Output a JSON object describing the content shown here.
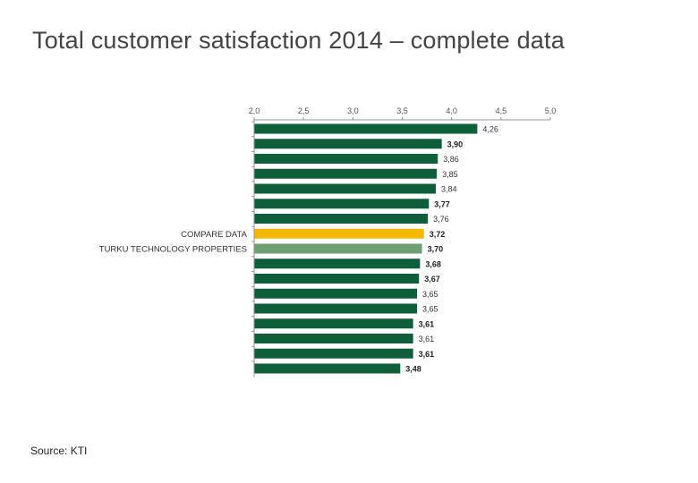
{
  "slide": {
    "title": "Total customer satisfaction 2014 – complete data",
    "source": "Source: KTI"
  },
  "colors": {
    "default_bar": "#0e5e3a",
    "compare_bar": "#f5b800",
    "highlight_bar": "#6e9e72",
    "axis": "#777777"
  },
  "chart_data": {
    "type": "bar",
    "orientation": "horizontal",
    "xlim": [
      2.0,
      5.0
    ],
    "ticks": [
      "2,0",
      "2,5",
      "3,0",
      "3,5",
      "4,0",
      "4,5",
      "5,0"
    ],
    "tick_values": [
      2.0,
      2.5,
      3.0,
      3.5,
      4.0,
      4.5,
      5.0
    ],
    "bars": [
      {
        "value": 4.26,
        "label": "4,26",
        "category": "",
        "kind": "default"
      },
      {
        "value": 3.9,
        "label": "3,90",
        "category": "",
        "kind": "default"
      },
      {
        "value": 3.86,
        "label": "3,86",
        "category": "",
        "kind": "default"
      },
      {
        "value": 3.85,
        "label": "3,85",
        "category": "",
        "kind": "default"
      },
      {
        "value": 3.84,
        "label": "3,84",
        "category": "",
        "kind": "default"
      },
      {
        "value": 3.77,
        "label": "3,77",
        "category": "",
        "kind": "default"
      },
      {
        "value": 3.76,
        "label": "3,76",
        "category": "",
        "kind": "default"
      },
      {
        "value": 3.72,
        "label": "3,72",
        "category": "COMPARE DATA",
        "kind": "compare"
      },
      {
        "value": 3.7,
        "label": "3,70",
        "category": "TURKU TECHNOLOGY PROPERTIES",
        "kind": "highlight"
      },
      {
        "value": 3.68,
        "label": "3,68",
        "category": "",
        "kind": "default"
      },
      {
        "value": 3.67,
        "label": "3,67",
        "category": "",
        "kind": "default"
      },
      {
        "value": 3.65,
        "label": "3,65",
        "category": "",
        "kind": "default"
      },
      {
        "value": 3.65,
        "label": "3,65",
        "category": "",
        "kind": "default"
      },
      {
        "value": 3.61,
        "label": "3,61",
        "category": "",
        "kind": "default"
      },
      {
        "value": 3.61,
        "label": "3,61",
        "category": "",
        "kind": "default"
      },
      {
        "value": 3.61,
        "label": "3,61",
        "category": "",
        "kind": "default"
      },
      {
        "value": 3.48,
        "label": "3,48",
        "category": "",
        "kind": "default"
      }
    ]
  }
}
